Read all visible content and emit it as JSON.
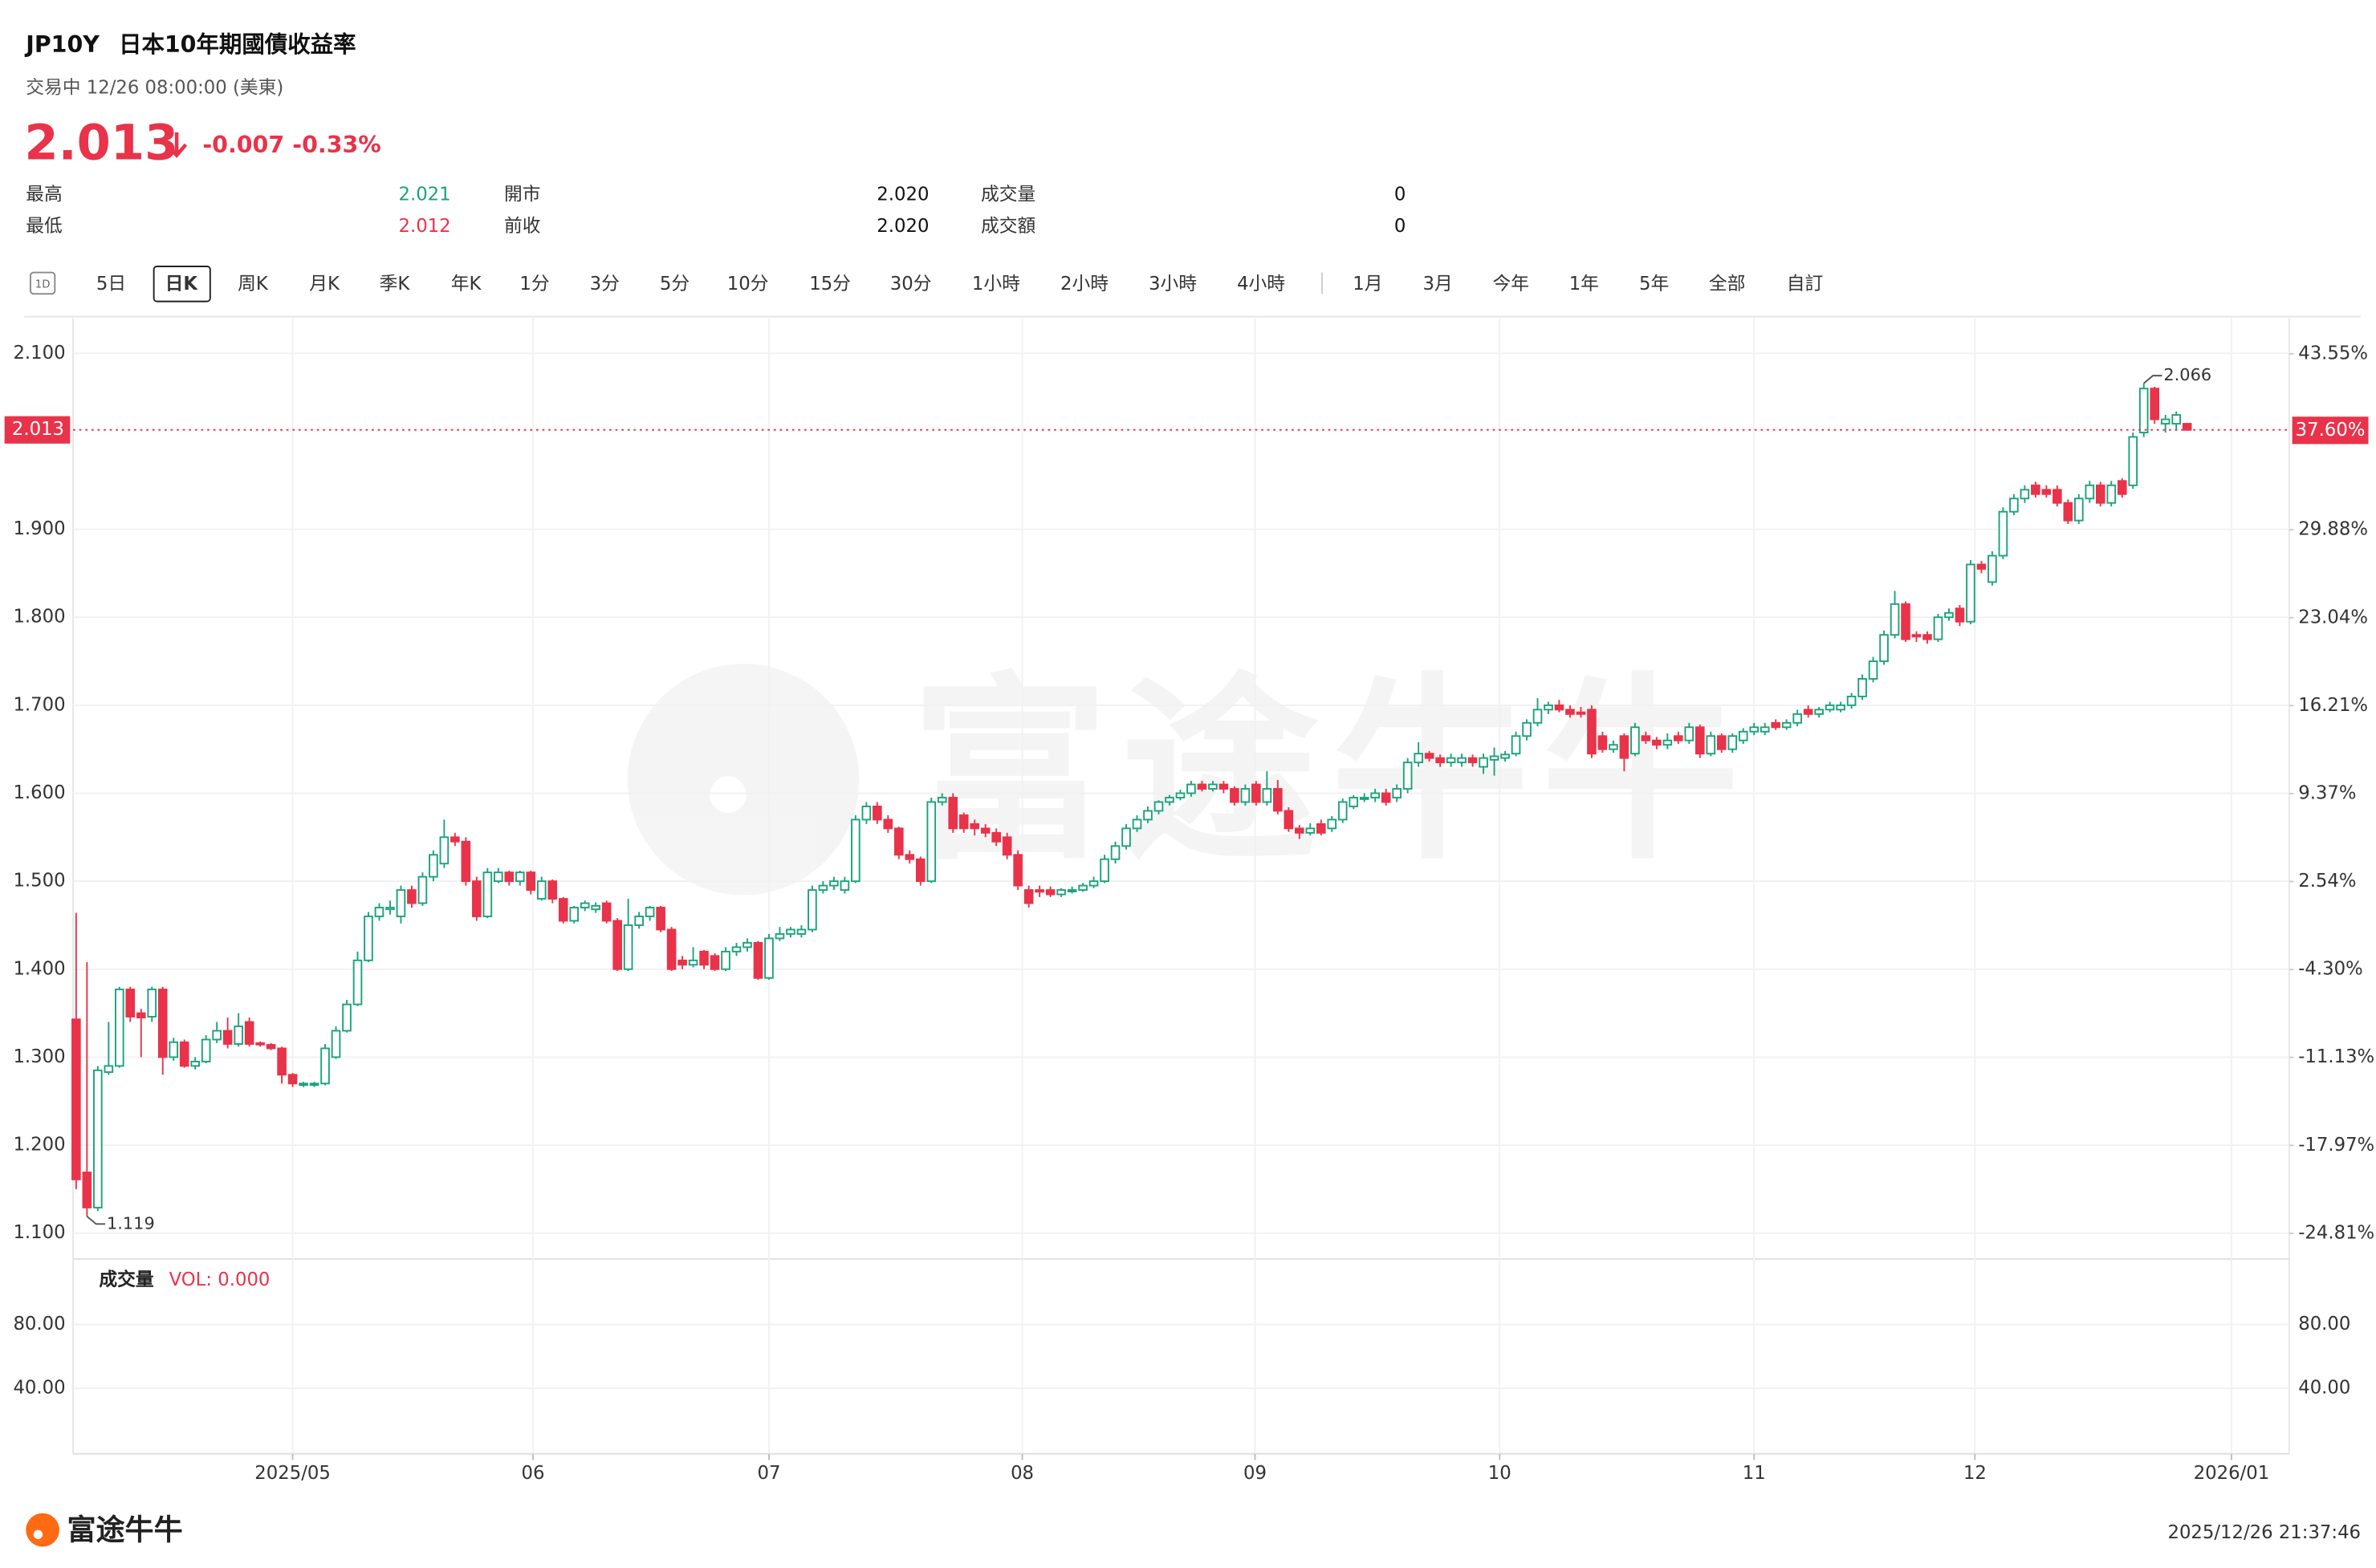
{
  "header": {
    "symbol": "JP10Y",
    "name": "日本10年期國債收益率",
    "status": "交易中 12/26 08:00:00 (美東)",
    "price": "2.013",
    "change": "-0.007",
    "change_pct": "-0.33%"
  },
  "stats": [
    {
      "label": "最高",
      "value": "2.021",
      "color": "#1aa37a"
    },
    {
      "label": "最低",
      "value": "2.012",
      "color": "#e8334a"
    },
    {
      "label": "開市",
      "value": "2.020"
    },
    {
      "label": "前收",
      "value": "2.020"
    },
    {
      "label": "成交量",
      "value": "0"
    },
    {
      "label": "成交額",
      "value": "0"
    }
  ],
  "tabs": {
    "icon": "1D",
    "items": [
      "5日",
      "日K",
      "周K",
      "月K",
      "季K",
      "年K",
      "1分",
      "3分",
      "5分",
      "10分",
      "15分",
      "30分",
      "1小時",
      "2小時",
      "3小時",
      "4小時",
      "1月",
      "3月",
      "今年",
      "1年",
      "5年",
      "全部",
      "自訂"
    ],
    "active": 1
  },
  "chart_data": {
    "type": "candlestick",
    "up_color": "#1aa37a",
    "down_color": "#e8334a",
    "grid": true,
    "watermark": "富途牛牛",
    "xlim": [
      -0.28,
      204.43
    ],
    "xticks": [
      {
        "value": 20,
        "label": "2025/05"
      },
      {
        "value": 42.2,
        "label": "06"
      },
      {
        "value": 64,
        "label": "07"
      },
      {
        "value": 87.4,
        "label": "08"
      },
      {
        "value": 108.9,
        "label": "09"
      },
      {
        "value": 131.5,
        "label": "10"
      },
      {
        "value": 155,
        "label": "11"
      },
      {
        "value": 175.4,
        "label": "12"
      },
      {
        "value": 199.1,
        "label": "2026/01"
      }
    ],
    "ylim": [
      1.0706,
      2.14
    ],
    "yticks": [
      {
        "value": 2.1,
        "label": "2.100"
      },
      {
        "value": 1.9,
        "label": "1.900"
      },
      {
        "value": 1.8,
        "label": "1.800"
      },
      {
        "value": 1.7,
        "label": "1.700"
      },
      {
        "value": 1.6,
        "label": "1.600"
      },
      {
        "value": 1.5,
        "label": "1.500"
      },
      {
        "value": 1.4,
        "label": "1.400"
      },
      {
        "value": 1.3,
        "label": "1.300"
      },
      {
        "value": 1.2,
        "label": "1.200"
      },
      {
        "value": 1.1,
        "label": "1.100"
      }
    ],
    "y2lim": [
      -26.8,
      46.32
    ],
    "y2ticks": [
      {
        "value": 43.55,
        "label": "43.55%"
      },
      {
        "value": 29.88,
        "label": "29.88%"
      },
      {
        "value": 23.04,
        "label": "23.04%"
      },
      {
        "value": 16.21,
        "label": "16.21%"
      },
      {
        "value": 9.37,
        "label": "9.37%"
      },
      {
        "value": 2.54,
        "label": "2.54%"
      },
      {
        "value": -4.3,
        "label": "-4.30%"
      },
      {
        "value": -11.13,
        "label": "-11.13%"
      },
      {
        "value": -17.97,
        "label": "-17.97%"
      },
      {
        "value": -24.81,
        "label": "-24.81%"
      }
    ],
    "last_price": 2.013,
    "last_percent": {
      "value": 37.6,
      "label": "37.60%"
    },
    "annotations": {
      "high": 2.066,
      "low": 1.119
    },
    "volume": {
      "title": "成交量",
      "label": "VOL: 0.000",
      "ylim": [
        -1,
        121
      ],
      "yticks": [
        {
          "value": 80,
          "label": "80.00"
        },
        {
          "value": 40,
          "label": "40.00"
        }
      ]
    },
    "ohlc": [
      [
        1.343,
        1.464,
        1.15,
        1.161
      ],
      [
        1.169,
        1.408,
        1.119,
        1.129
      ],
      [
        1.129,
        1.29,
        1.125,
        1.285
      ],
      [
        1.283,
        1.34,
        1.28,
        1.29
      ],
      [
        1.29,
        1.38,
        1.288,
        1.377
      ],
      [
        1.377,
        1.38,
        1.34,
        1.346
      ],
      [
        1.35,
        1.355,
        1.3,
        1.345
      ],
      [
        1.346,
        1.38,
        1.34,
        1.377
      ],
      [
        1.377,
        1.38,
        1.28,
        1.3
      ],
      [
        1.3,
        1.322,
        1.296,
        1.317
      ],
      [
        1.317,
        1.32,
        1.288,
        1.29
      ],
      [
        1.29,
        1.3,
        1.286,
        1.295
      ],
      [
        1.295,
        1.325,
        1.293,
        1.32
      ],
      [
        1.32,
        1.34,
        1.316,
        1.33
      ],
      [
        1.33,
        1.345,
        1.31,
        1.315
      ],
      [
        1.315,
        1.35,
        1.312,
        1.335
      ],
      [
        1.34,
        1.345,
        1.312,
        1.315
      ],
      [
        1.316,
        1.318,
        1.312,
        1.315
      ],
      [
        1.314,
        1.316,
        1.308,
        1.31
      ],
      [
        1.31,
        1.312,
        1.27,
        1.28
      ],
      [
        1.28,
        1.282,
        1.266,
        1.27
      ],
      [
        1.27,
        1.272,
        1.266,
        1.27
      ],
      [
        1.27,
        1.272,
        1.266,
        1.27
      ],
      [
        1.27,
        1.315,
        1.268,
        1.31
      ],
      [
        1.3,
        1.335,
        1.298,
        1.33
      ],
      [
        1.33,
        1.365,
        1.328,
        1.36
      ],
      [
        1.36,
        1.42,
        1.358,
        1.41
      ],
      [
        1.41,
        1.465,
        1.408,
        1.46
      ],
      [
        1.46,
        1.475,
        1.455,
        1.47
      ],
      [
        1.468,
        1.478,
        1.462,
        1.47
      ],
      [
        1.46,
        1.495,
        1.452,
        1.49
      ],
      [
        1.49,
        1.495,
        1.47,
        1.475
      ],
      [
        1.475,
        1.51,
        1.472,
        1.505
      ],
      [
        1.505,
        1.535,
        1.5,
        1.53
      ],
      [
        1.52,
        1.57,
        1.515,
        1.55
      ],
      [
        1.55,
        1.555,
        1.54,
        1.545
      ],
      [
        1.545,
        1.55,
        1.495,
        1.5
      ],
      [
        1.5,
        1.505,
        1.455,
        1.46
      ],
      [
        1.46,
        1.515,
        1.458,
        1.51
      ],
      [
        1.5,
        1.515,
        1.498,
        1.51
      ],
      [
        1.51,
        1.512,
        1.495,
        1.5
      ],
      [
        1.5,
        1.512,
        1.495,
        1.51
      ],
      [
        1.51,
        1.512,
        1.485,
        1.49
      ],
      [
        1.48,
        1.505,
        1.478,
        1.5
      ],
      [
        1.5,
        1.502,
        1.475,
        1.48
      ],
      [
        1.48,
        1.482,
        1.452,
        1.455
      ],
      [
        1.455,
        1.472,
        1.452,
        1.47
      ],
      [
        1.47,
        1.478,
        1.466,
        1.475
      ],
      [
        1.468,
        1.476,
        1.464,
        1.472
      ],
      [
        1.475,
        1.478,
        1.452,
        1.455
      ],
      [
        1.455,
        1.458,
        1.398,
        1.4
      ],
      [
        1.4,
        1.48,
        1.398,
        1.45
      ],
      [
        1.45,
        1.465,
        1.446,
        1.46
      ],
      [
        1.46,
        1.472,
        1.455,
        1.47
      ],
      [
        1.47,
        1.472,
        1.442,
        1.445
      ],
      [
        1.445,
        1.448,
        1.398,
        1.4
      ],
      [
        1.41,
        1.415,
        1.4,
        1.405
      ],
      [
        1.405,
        1.425,
        1.402,
        1.41
      ],
      [
        1.42,
        1.422,
        1.4,
        1.405
      ],
      [
        1.415,
        1.418,
        1.398,
        1.4
      ],
      [
        1.4,
        1.425,
        1.398,
        1.42
      ],
      [
        1.42,
        1.43,
        1.415,
        1.425
      ],
      [
        1.425,
        1.435,
        1.42,
        1.43
      ],
      [
        1.43,
        1.432,
        1.388,
        1.39
      ],
      [
        1.39,
        1.44,
        1.388,
        1.435
      ],
      [
        1.435,
        1.448,
        1.432,
        1.44
      ],
      [
        1.44,
        1.448,
        1.436,
        1.445
      ],
      [
        1.44,
        1.45,
        1.436,
        1.445
      ],
      [
        1.445,
        1.495,
        1.442,
        1.49
      ],
      [
        1.49,
        1.5,
        1.486,
        1.495
      ],
      [
        1.495,
        1.505,
        1.49,
        1.5
      ],
      [
        1.49,
        1.505,
        1.486,
        1.5
      ],
      [
        1.5,
        1.575,
        1.498,
        1.57
      ],
      [
        1.57,
        1.59,
        1.565,
        1.585
      ],
      [
        1.585,
        1.59,
        1.565,
        1.57
      ],
      [
        1.57,
        1.575,
        1.555,
        1.56
      ],
      [
        1.56,
        1.562,
        1.525,
        1.53
      ],
      [
        1.53,
        1.535,
        1.52,
        1.525
      ],
      [
        1.525,
        1.528,
        1.495,
        1.5
      ],
      [
        1.5,
        1.595,
        1.498,
        1.59
      ],
      [
        1.59,
        1.6,
        1.586,
        1.595
      ],
      [
        1.595,
        1.6,
        1.555,
        1.56
      ],
      [
        1.575,
        1.578,
        1.555,
        1.56
      ],
      [
        1.565,
        1.57,
        1.552,
        1.56
      ],
      [
        1.56,
        1.565,
        1.55,
        1.555
      ],
      [
        1.555,
        1.56,
        1.54,
        1.545
      ],
      [
        1.55,
        1.555,
        1.525,
        1.53
      ],
      [
        1.53,
        1.535,
        1.49,
        1.495
      ],
      [
        1.49,
        1.495,
        1.47,
        1.475
      ],
      [
        1.49,
        1.495,
        1.482,
        1.488
      ],
      [
        1.49,
        1.494,
        1.482,
        1.485
      ],
      [
        1.485,
        1.492,
        1.482,
        1.49
      ],
      [
        1.49,
        1.494,
        1.486,
        1.49
      ],
      [
        1.49,
        1.498,
        1.488,
        1.495
      ],
      [
        1.495,
        1.505,
        1.492,
        1.5
      ],
      [
        1.5,
        1.53,
        1.498,
        1.525
      ],
      [
        1.525,
        1.545,
        1.52,
        1.54
      ],
      [
        1.54,
        1.565,
        1.536,
        1.56
      ],
      [
        1.56,
        1.575,
        1.556,
        1.57
      ],
      [
        1.57,
        1.585,
        1.566,
        1.58
      ],
      [
        1.58,
        1.592,
        1.576,
        1.59
      ],
      [
        1.59,
        1.598,
        1.586,
        1.595
      ],
      [
        1.595,
        1.604,
        1.592,
        1.6
      ],
      [
        1.6,
        1.614,
        1.596,
        1.61
      ],
      [
        1.61,
        1.614,
        1.602,
        1.605
      ],
      [
        1.605,
        1.614,
        1.602,
        1.61
      ],
      [
        1.61,
        1.614,
        1.6,
        1.605
      ],
      [
        1.605,
        1.608,
        1.586,
        1.59
      ],
      [
        1.59,
        1.61,
        1.586,
        1.605
      ],
      [
        1.61,
        1.614,
        1.586,
        1.59
      ],
      [
        1.59,
        1.625,
        1.586,
        1.605
      ],
      [
        1.605,
        1.615,
        1.576,
        1.58
      ],
      [
        1.58,
        1.584,
        1.556,
        1.56
      ],
      [
        1.56,
        1.564,
        1.548,
        1.555
      ],
      [
        1.555,
        1.566,
        1.552,
        1.56
      ],
      [
        1.565,
        1.57,
        1.552,
        1.555
      ],
      [
        1.56,
        1.574,
        1.556,
        1.57
      ],
      [
        1.57,
        1.594,
        1.566,
        1.59
      ],
      [
        1.585,
        1.598,
        1.582,
        1.595
      ],
      [
        1.594,
        1.6,
        1.59,
        1.595
      ],
      [
        1.595,
        1.605,
        1.59,
        1.6
      ],
      [
        1.6,
        1.605,
        1.586,
        1.59
      ],
      [
        1.595,
        1.61,
        1.59,
        1.605
      ],
      [
        1.605,
        1.64,
        1.6,
        1.635
      ],
      [
        1.635,
        1.658,
        1.63,
        1.645
      ],
      [
        1.645,
        1.648,
        1.636,
        1.64
      ],
      [
        1.64,
        1.644,
        1.63,
        1.635
      ],
      [
        1.635,
        1.645,
        1.63,
        1.64
      ],
      [
        1.635,
        1.645,
        1.63,
        1.64
      ],
      [
        1.64,
        1.644,
        1.63,
        1.635
      ],
      [
        1.63,
        1.645,
        1.622,
        1.64
      ],
      [
        1.638,
        1.652,
        1.62,
        1.642
      ],
      [
        1.64,
        1.648,
        1.636,
        1.644
      ],
      [
        1.645,
        1.67,
        1.642,
        1.665
      ],
      [
        1.665,
        1.684,
        1.66,
        1.68
      ],
      [
        1.68,
        1.708,
        1.676,
        1.695
      ],
      [
        1.695,
        1.704,
        1.69,
        1.7
      ],
      [
        1.7,
        1.706,
        1.692,
        1.695
      ],
      [
        1.695,
        1.7,
        1.686,
        1.69
      ],
      [
        1.692,
        1.698,
        1.686,
        1.69
      ],
      [
        1.695,
        1.7,
        1.64,
        1.645
      ],
      [
        1.665,
        1.67,
        1.646,
        1.65
      ],
      [
        1.65,
        1.66,
        1.646,
        1.655
      ],
      [
        1.665,
        1.668,
        1.625,
        1.64
      ],
      [
        1.645,
        1.68,
        1.642,
        1.675
      ],
      [
        1.665,
        1.67,
        1.656,
        1.66
      ],
      [
        1.66,
        1.664,
        1.65,
        1.655
      ],
      [
        1.655,
        1.668,
        1.65,
        1.66
      ],
      [
        1.665,
        1.67,
        1.656,
        1.66
      ],
      [
        1.66,
        1.68,
        1.656,
        1.675
      ],
      [
        1.675,
        1.678,
        1.64,
        1.645
      ],
      [
        1.645,
        1.67,
        1.642,
        1.665
      ],
      [
        1.665,
        1.668,
        1.646,
        1.65
      ],
      [
        1.65,
        1.668,
        1.646,
        1.665
      ],
      [
        1.66,
        1.674,
        1.656,
        1.67
      ],
      [
        1.67,
        1.68,
        1.666,
        1.675
      ],
      [
        1.67,
        1.68,
        1.666,
        1.675
      ],
      [
        1.68,
        1.684,
        1.672,
        1.675
      ],
      [
        1.675,
        1.684,
        1.672,
        1.68
      ],
      [
        1.68,
        1.695,
        1.676,
        1.69
      ],
      [
        1.695,
        1.7,
        1.686,
        1.69
      ],
      [
        1.69,
        1.698,
        1.686,
        1.695
      ],
      [
        1.695,
        1.704,
        1.692,
        1.7
      ],
      [
        1.695,
        1.704,
        1.692,
        1.7
      ],
      [
        1.7,
        1.714,
        1.696,
        1.71
      ],
      [
        1.71,
        1.735,
        1.706,
        1.73
      ],
      [
        1.73,
        1.755,
        1.726,
        1.75
      ],
      [
        1.75,
        1.785,
        1.746,
        1.78
      ],
      [
        1.78,
        1.83,
        1.776,
        1.815
      ],
      [
        1.815,
        1.818,
        1.772,
        1.775
      ],
      [
        1.78,
        1.784,
        1.772,
        1.778
      ],
      [
        1.78,
        1.784,
        1.77,
        1.775
      ],
      [
        1.775,
        1.804,
        1.772,
        1.8
      ],
      [
        1.8,
        1.81,
        1.796,
        1.805
      ],
      [
        1.81,
        1.814,
        1.79,
        1.795
      ],
      [
        1.795,
        1.865,
        1.792,
        1.86
      ],
      [
        1.86,
        1.864,
        1.85,
        1.855
      ],
      [
        1.84,
        1.875,
        1.836,
        1.87
      ],
      [
        1.87,
        1.925,
        1.866,
        1.92
      ],
      [
        1.92,
        1.94,
        1.916,
        1.935
      ],
      [
        1.935,
        1.95,
        1.93,
        1.945
      ],
      [
        1.95,
        1.954,
        1.936,
        1.94
      ],
      [
        1.945,
        1.95,
        1.936,
        1.94
      ],
      [
        1.945,
        1.95,
        1.926,
        1.93
      ],
      [
        1.93,
        1.934,
        1.906,
        1.91
      ],
      [
        1.91,
        1.94,
        1.906,
        1.935
      ],
      [
        1.935,
        1.955,
        1.93,
        1.95
      ],
      [
        1.95,
        1.954,
        1.926,
        1.93
      ],
      [
        1.93,
        1.955,
        1.926,
        1.95
      ],
      [
        1.955,
        1.958,
        1.936,
        1.94
      ],
      [
        1.95,
        2.01,
        1.946,
        2.005
      ],
      [
        2.01,
        2.066,
        2.005,
        2.06
      ],
      [
        2.06,
        2.062,
        2.02,
        2.025
      ],
      [
        2.02,
        2.03,
        2.01,
        2.025
      ],
      [
        2.02,
        2.034,
        2.012,
        2.03
      ],
      [
        2.02,
        2.021,
        2.012,
        2.013
      ]
    ]
  },
  "footer": {
    "brand": "富途牛牛",
    "timestamp": "2025/12/26 21:37:46"
  }
}
